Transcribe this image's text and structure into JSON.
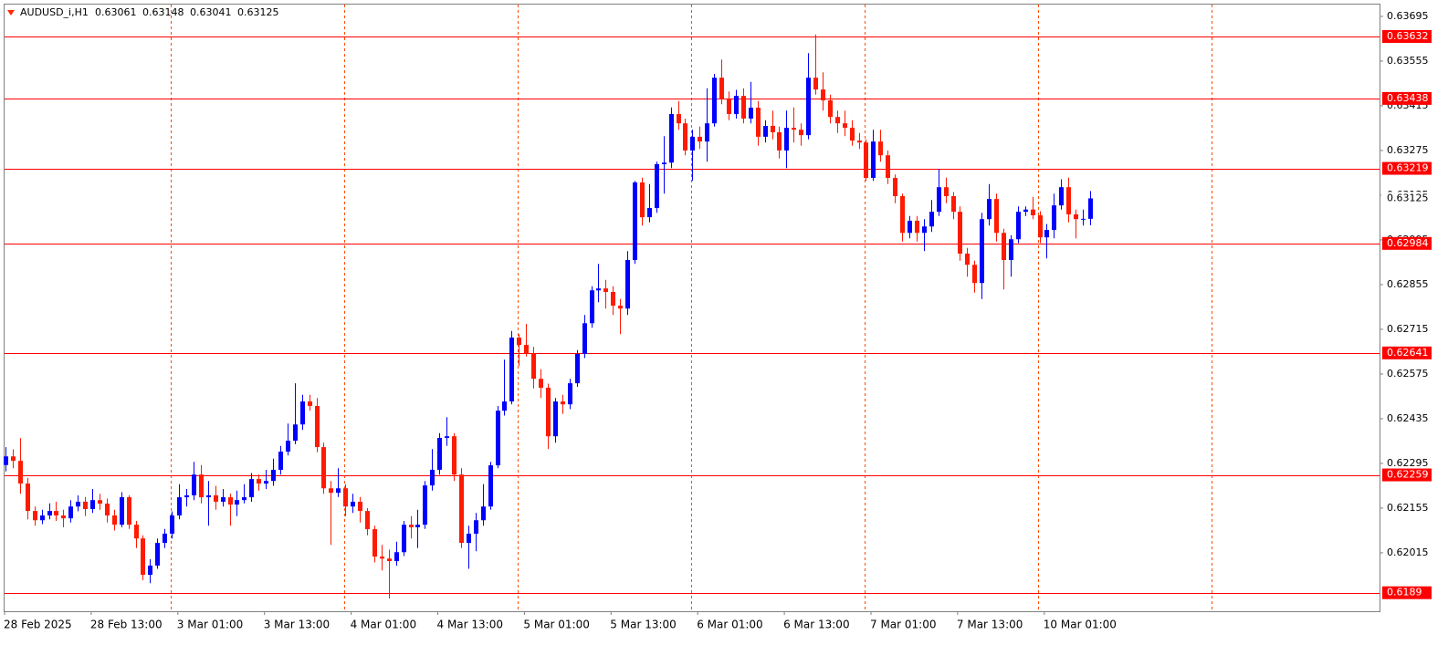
{
  "chart_data": {
    "type": "candlestick",
    "symbol": "AUDUSD_i,H1",
    "up_color": "#0000ff",
    "down_color": "#ff1a00",
    "level_color": "#ff0000",
    "ylim": [
      0.61832,
      0.63732
    ],
    "yticks": [
      0.63695,
      0.63555,
      0.63415,
      0.63275,
      0.63135,
      0.62995,
      0.62855,
      0.62715,
      0.62575,
      0.62435,
      0.62295,
      0.62155,
      0.62015
    ],
    "levels": [
      0.63632,
      0.63438,
      0.63219,
      0.62984,
      0.62641,
      0.62259,
      0.6189
    ],
    "x_labels": [
      "28 Feb 2025",
      "28 Feb 13:00",
      "3 Mar 01:00",
      "3 Mar 13:00",
      "4 Mar 01:00",
      "4 Mar 13:00",
      "5 Mar 01:00",
      "5 Mar 13:00",
      "6 Mar 01:00",
      "6 Mar 13:00",
      "7 Mar 01:00",
      "7 Mar 13:00",
      "10 Mar 01:00"
    ],
    "candles": [
      [
        0.6229,
        0.62346,
        0.6227,
        0.62317
      ],
      [
        0.62317,
        0.62339,
        0.6228,
        0.62303
      ],
      [
        0.62303,
        0.62374,
        0.622,
        0.62232
      ],
      [
        0.62232,
        0.6225,
        0.6212,
        0.62146
      ],
      [
        0.62146,
        0.6216,
        0.621,
        0.62117
      ],
      [
        0.62117,
        0.6215,
        0.62105,
        0.62132
      ],
      [
        0.62132,
        0.6217,
        0.6212,
        0.62146
      ],
      [
        0.62146,
        0.62175,
        0.62115,
        0.62132
      ],
      [
        0.62132,
        0.6215,
        0.62095,
        0.62123
      ],
      [
        0.62123,
        0.6218,
        0.6211,
        0.6216
      ],
      [
        0.6216,
        0.62195,
        0.62145,
        0.62175
      ],
      [
        0.62175,
        0.6219,
        0.6213,
        0.62152
      ],
      [
        0.62152,
        0.62215,
        0.6214,
        0.6218
      ],
      [
        0.6218,
        0.622,
        0.6215,
        0.62169
      ],
      [
        0.62169,
        0.62185,
        0.6211,
        0.62132
      ],
      [
        0.62132,
        0.6215,
        0.62085,
        0.62103
      ],
      [
        0.62103,
        0.62205,
        0.62095,
        0.62189
      ],
      [
        0.62189,
        0.62195,
        0.6209,
        0.62103
      ],
      [
        0.62103,
        0.62115,
        0.6203,
        0.6206
      ],
      [
        0.6206,
        0.6207,
        0.61929,
        0.61946
      ],
      [
        0.61946,
        0.61995,
        0.6192,
        0.61975
      ],
      [
        0.61975,
        0.6206,
        0.61965,
        0.62046
      ],
      [
        0.62046,
        0.6209,
        0.6203,
        0.62075
      ],
      [
        0.62075,
        0.62145,
        0.6206,
        0.62132
      ],
      [
        0.62132,
        0.6223,
        0.6212,
        0.62189
      ],
      [
        0.62189,
        0.62215,
        0.6216,
        0.62195
      ],
      [
        0.62195,
        0.623,
        0.6218,
        0.6226
      ],
      [
        0.6226,
        0.6229,
        0.6217,
        0.62189
      ],
      [
        0.62189,
        0.6224,
        0.621,
        0.62195
      ],
      [
        0.62195,
        0.62225,
        0.6215,
        0.62175
      ],
      [
        0.62175,
        0.62215,
        0.6216,
        0.62189
      ],
      [
        0.62189,
        0.622,
        0.621,
        0.62166
      ],
      [
        0.62166,
        0.6221,
        0.6213,
        0.6218
      ],
      [
        0.6218,
        0.6223,
        0.6217,
        0.62189
      ],
      [
        0.62189,
        0.62265,
        0.62175,
        0.62246
      ],
      [
        0.62246,
        0.6226,
        0.6221,
        0.62232
      ],
      [
        0.62232,
        0.62275,
        0.62215,
        0.6224
      ],
      [
        0.6224,
        0.6231,
        0.62225,
        0.62275
      ],
      [
        0.62275,
        0.6235,
        0.6226,
        0.62332
      ],
      [
        0.62332,
        0.6242,
        0.6232,
        0.62366
      ],
      [
        0.62366,
        0.62546,
        0.62355,
        0.62417
      ],
      [
        0.62417,
        0.6251,
        0.624,
        0.62489
      ],
      [
        0.62489,
        0.6251,
        0.6246,
        0.62475
      ],
      [
        0.62475,
        0.625,
        0.6233,
        0.62346
      ],
      [
        0.62346,
        0.6236,
        0.622,
        0.62217
      ],
      [
        0.62217,
        0.6224,
        0.6204,
        0.62203
      ],
      [
        0.62203,
        0.6228,
        0.6219,
        0.62217
      ],
      [
        0.62217,
        0.6223,
        0.6213,
        0.6216
      ],
      [
        0.6216,
        0.622,
        0.6214,
        0.62175
      ],
      [
        0.62175,
        0.6219,
        0.6211,
        0.62146
      ],
      [
        0.62146,
        0.62155,
        0.6207,
        0.62089
      ],
      [
        0.62089,
        0.621,
        0.61985,
        0.62003
      ],
      [
        0.62003,
        0.6204,
        0.6196,
        0.61997
      ],
      [
        0.61997,
        0.62025,
        0.61872,
        0.61989
      ],
      [
        0.61989,
        0.6205,
        0.61975,
        0.62017
      ],
      [
        0.62017,
        0.62115,
        0.62005,
        0.62103
      ],
      [
        0.62103,
        0.6213,
        0.6206,
        0.62095
      ],
      [
        0.62095,
        0.6215,
        0.6203,
        0.62103
      ],
      [
        0.62103,
        0.6224,
        0.6209,
        0.62226
      ],
      [
        0.62226,
        0.6234,
        0.6221,
        0.62275
      ],
      [
        0.62275,
        0.6239,
        0.6226,
        0.62375
      ],
      [
        0.62375,
        0.6244,
        0.6235,
        0.6238
      ],
      [
        0.6238,
        0.6239,
        0.6224,
        0.6226
      ],
      [
        0.6226,
        0.6228,
        0.6203,
        0.62046
      ],
      [
        0.62046,
        0.621,
        0.61965,
        0.62075
      ],
      [
        0.62075,
        0.6214,
        0.6202,
        0.62117
      ],
      [
        0.62117,
        0.6223,
        0.621,
        0.6216
      ],
      [
        0.6216,
        0.623,
        0.6215,
        0.62289
      ],
      [
        0.62289,
        0.62475,
        0.6228,
        0.6246
      ],
      [
        0.6246,
        0.6262,
        0.62445,
        0.62489
      ],
      [
        0.62489,
        0.6271,
        0.6248,
        0.62689
      ],
      [
        0.62689,
        0.627,
        0.626,
        0.62666
      ],
      [
        0.62666,
        0.62732,
        0.6263,
        0.6264
      ],
      [
        0.6264,
        0.6266,
        0.6253,
        0.6256
      ],
      [
        0.6256,
        0.6259,
        0.625,
        0.62532
      ],
      [
        0.62532,
        0.62545,
        0.6234,
        0.6238
      ],
      [
        0.6238,
        0.625,
        0.6236,
        0.62489
      ],
      [
        0.62489,
        0.6251,
        0.6245,
        0.6248
      ],
      [
        0.6248,
        0.6256,
        0.62465,
        0.62546
      ],
      [
        0.62546,
        0.6265,
        0.62535,
        0.62638
      ],
      [
        0.62638,
        0.6276,
        0.62625,
        0.62734
      ],
      [
        0.62734,
        0.6285,
        0.6272,
        0.62837
      ],
      [
        0.62837,
        0.6292,
        0.628,
        0.62843
      ],
      [
        0.62843,
        0.6287,
        0.6278,
        0.62832
      ],
      [
        0.62832,
        0.6285,
        0.6276,
        0.62789
      ],
      [
        0.62789,
        0.6281,
        0.627,
        0.6278
      ],
      [
        0.6278,
        0.6296,
        0.6276,
        0.62932
      ],
      [
        0.62932,
        0.6318,
        0.6292,
        0.63175
      ],
      [
        0.63175,
        0.6319,
        0.6304,
        0.63066
      ],
      [
        0.63066,
        0.6317,
        0.6305,
        0.63095
      ],
      [
        0.63095,
        0.6324,
        0.6308,
        0.63232
      ],
      [
        0.63232,
        0.6332,
        0.6314,
        0.63237
      ],
      [
        0.63237,
        0.6341,
        0.6322,
        0.63389
      ],
      [
        0.63389,
        0.6343,
        0.6334,
        0.6336
      ],
      [
        0.6336,
        0.63375,
        0.6326,
        0.63275
      ],
      [
        0.63275,
        0.6334,
        0.6318,
        0.63318
      ],
      [
        0.63318,
        0.6335,
        0.6328,
        0.63303
      ],
      [
        0.63303,
        0.6347,
        0.6324,
        0.6336
      ],
      [
        0.6336,
        0.63515,
        0.6335,
        0.63503
      ],
      [
        0.63503,
        0.6356,
        0.6342,
        0.63437
      ],
      [
        0.63437,
        0.6346,
        0.6337,
        0.63389
      ],
      [
        0.63389,
        0.63465,
        0.63375,
        0.63446
      ],
      [
        0.63446,
        0.6347,
        0.6336,
        0.63375
      ],
      [
        0.63375,
        0.6349,
        0.6336,
        0.63409
      ],
      [
        0.63409,
        0.6343,
        0.6329,
        0.63318
      ],
      [
        0.63318,
        0.6337,
        0.633,
        0.63352
      ],
      [
        0.63352,
        0.634,
        0.6331,
        0.63332
      ],
      [
        0.63332,
        0.6335,
        0.6325,
        0.63275
      ],
      [
        0.63275,
        0.634,
        0.6322,
        0.63346
      ],
      [
        0.63346,
        0.6341,
        0.633,
        0.6334
      ],
      [
        0.6334,
        0.6336,
        0.6329,
        0.63323
      ],
      [
        0.63323,
        0.6358,
        0.6331,
        0.63503
      ],
      [
        0.63503,
        0.63638,
        0.6345,
        0.63466
      ],
      [
        0.63466,
        0.6352,
        0.634,
        0.63432
      ],
      [
        0.63432,
        0.6345,
        0.6336,
        0.6338
      ],
      [
        0.6338,
        0.634,
        0.6333,
        0.6336
      ],
      [
        0.6336,
        0.634,
        0.6332,
        0.63346
      ],
      [
        0.63346,
        0.6337,
        0.6329,
        0.63306
      ],
      [
        0.63306,
        0.6333,
        0.6328,
        0.633
      ],
      [
        0.633,
        0.6331,
        0.6318,
        0.63189
      ],
      [
        0.63189,
        0.6334,
        0.6318,
        0.63303
      ],
      [
        0.63303,
        0.6334,
        0.6324,
        0.6326
      ],
      [
        0.6326,
        0.63275,
        0.6317,
        0.63189
      ],
      [
        0.63189,
        0.632,
        0.6311,
        0.63132
      ],
      [
        0.63132,
        0.6314,
        0.6299,
        0.63017
      ],
      [
        0.63017,
        0.6307,
        0.63,
        0.63055
      ],
      [
        0.63055,
        0.6307,
        0.6299,
        0.63017
      ],
      [
        0.63017,
        0.6306,
        0.6296,
        0.63037
      ],
      [
        0.63037,
        0.6312,
        0.6302,
        0.63083
      ],
      [
        0.63083,
        0.63217,
        0.6307,
        0.6316
      ],
      [
        0.6316,
        0.6319,
        0.6311,
        0.63132
      ],
      [
        0.63132,
        0.63145,
        0.6306,
        0.63083
      ],
      [
        0.63083,
        0.631,
        0.6293,
        0.62952
      ],
      [
        0.62952,
        0.6297,
        0.6288,
        0.62917
      ],
      [
        0.62917,
        0.6293,
        0.6283,
        0.6286
      ],
      [
        0.6286,
        0.6308,
        0.6281,
        0.6306
      ],
      [
        0.6306,
        0.6317,
        0.6304,
        0.63123
      ],
      [
        0.63123,
        0.6314,
        0.6299,
        0.63017
      ],
      [
        0.63017,
        0.6303,
        0.6284,
        0.62932
      ],
      [
        0.62932,
        0.6301,
        0.6288,
        0.62997
      ],
      [
        0.62997,
        0.631,
        0.62985,
        0.63083
      ],
      [
        0.63083,
        0.631,
        0.6307,
        0.6309
      ],
      [
        0.6309,
        0.6313,
        0.6306,
        0.63072
      ],
      [
        0.63072,
        0.63085,
        0.62985,
        0.63003
      ],
      [
        0.63003,
        0.63045,
        0.62937,
        0.63026
      ],
      [
        0.63026,
        0.6314,
        0.63,
        0.63103
      ],
      [
        0.63103,
        0.63185,
        0.6309,
        0.6316
      ],
      [
        0.6316,
        0.6319,
        0.6305,
        0.63075
      ],
      [
        0.63075,
        0.6309,
        0.63,
        0.6306
      ],
      [
        0.6306,
        0.6309,
        0.6304,
        0.63061
      ],
      [
        0.63061,
        0.63148,
        0.63041,
        0.63125
      ]
    ]
  }
}
